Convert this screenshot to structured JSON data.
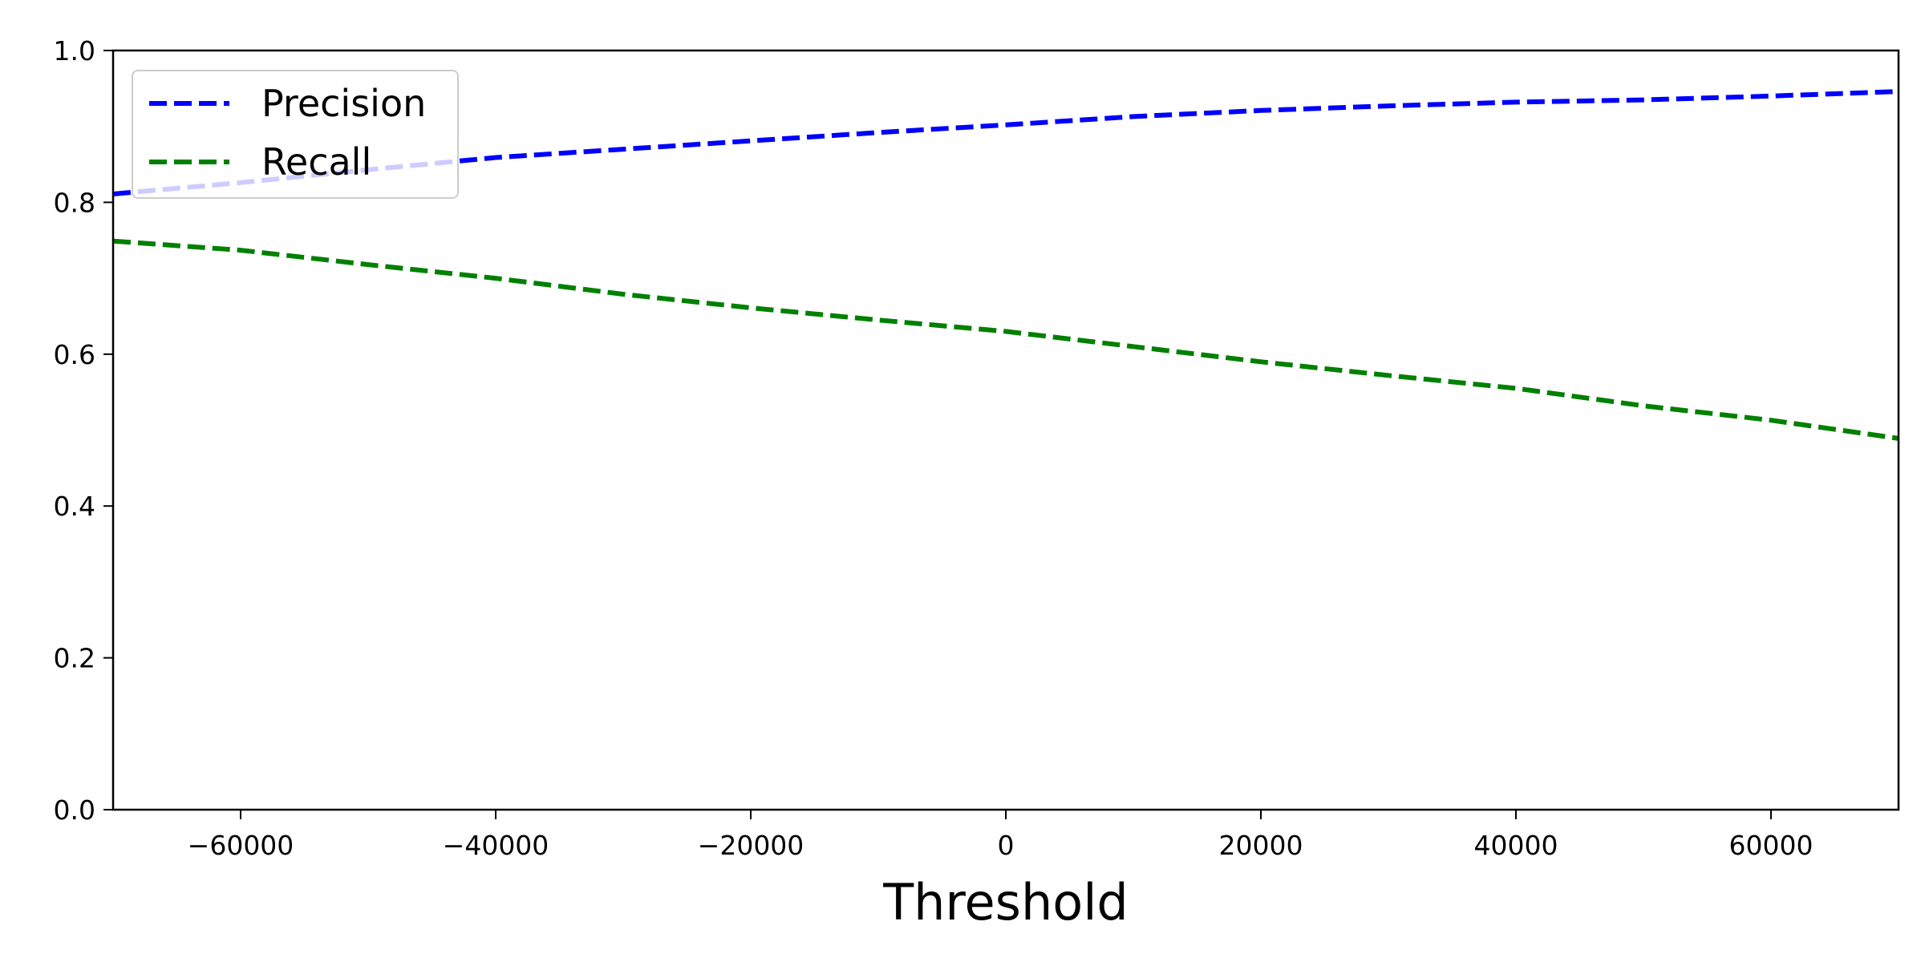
{
  "chart_data": {
    "type": "line",
    "title": "",
    "xlabel": "Threshold",
    "ylabel": "",
    "xlim": [
      -70000,
      70000
    ],
    "ylim": [
      0.0,
      1.0
    ],
    "xticks": [
      -60000,
      -40000,
      -20000,
      0,
      20000,
      40000,
      60000
    ],
    "xtick_labels": [
      "−60000",
      "−40000",
      "−20000",
      "0",
      "20000",
      "40000",
      "60000"
    ],
    "yticks": [
      0.0,
      0.2,
      0.4,
      0.6,
      0.8,
      1.0
    ],
    "ytick_labels": [
      "0.0",
      "0.2",
      "0.4",
      "0.6",
      "0.8",
      "1.0"
    ],
    "grid": false,
    "legend": "upper-left",
    "x": [
      -70000,
      -60000,
      -50000,
      -40000,
      -30000,
      -20000,
      -10000,
      0,
      10000,
      20000,
      30000,
      40000,
      50000,
      60000,
      70000
    ],
    "series": [
      {
        "name": "Precision",
        "color": "#0000ff",
        "style": "dashed",
        "values": [
          0.811,
          0.826,
          0.843,
          0.859,
          0.87,
          0.881,
          0.892,
          0.902,
          0.913,
          0.921,
          0.927,
          0.932,
          0.935,
          0.94,
          0.946
        ]
      },
      {
        "name": "Recall",
        "color": "#008000",
        "style": "dashed",
        "values": [
          0.749,
          0.737,
          0.718,
          0.7,
          0.679,
          0.661,
          0.645,
          0.63,
          0.61,
          0.59,
          0.572,
          0.555,
          0.532,
          0.513,
          0.489
        ]
      }
    ]
  }
}
